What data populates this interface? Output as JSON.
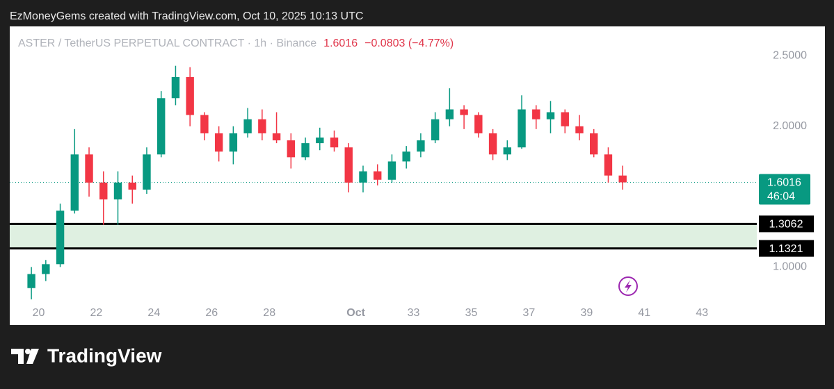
{
  "header": {
    "attribution": "EzMoneyGems created with TradingView.com, Oct 10, 2025 10:13 UTC"
  },
  "footer": {
    "brand": "TradingView"
  },
  "chart_data": {
    "type": "candlestick",
    "title": "ASTER / TetherUS PERPETUAL CONTRACT · 1h · Binance",
    "last_price": 1.6016,
    "change_text": "−0.0803 (−4.77%)",
    "countdown": "46:04",
    "levels": [
      1.3062,
      1.1321
    ],
    "up_color": "#089981",
    "down_color": "#f23645",
    "x": [
      19.75,
      20.25,
      20.75,
      21.25,
      21.75,
      22.25,
      22.75,
      23.25,
      23.75,
      24.25,
      24.75,
      25.25,
      25.75,
      26.25,
      26.75,
      27.25,
      27.75,
      28.25,
      28.75,
      29.25,
      29.75,
      30.25,
      30.75,
      31.25,
      31.75,
      32.25,
      32.75,
      33.25,
      33.75,
      34.25,
      34.75,
      35.25,
      35.75,
      36.25,
      36.75,
      37.25,
      37.75,
      38.25,
      38.75,
      39.25,
      39.75,
      40.25
    ],
    "open": [
      0.85,
      0.95,
      1.02,
      1.4,
      1.8,
      1.6,
      1.48,
      1.6,
      1.55,
      1.8,
      2.2,
      2.35,
      2.08,
      1.95,
      1.82,
      1.95,
      2.05,
      1.95,
      1.9,
      1.78,
      1.88,
      1.92,
      1.85,
      1.6,
      1.68,
      1.62,
      1.75,
      1.82,
      1.9,
      2.05,
      2.12,
      2.08,
      1.95,
      1.8,
      1.85,
      2.12,
      2.05,
      2.1,
      2.0,
      1.95,
      1.8,
      1.65
    ],
    "high": [
      1.0,
      1.05,
      1.45,
      1.98,
      1.85,
      1.68,
      1.68,
      1.65,
      1.85,
      2.25,
      2.43,
      2.42,
      2.1,
      2.0,
      2.0,
      2.13,
      2.12,
      2.1,
      1.95,
      1.92,
      1.99,
      1.97,
      1.88,
      1.72,
      1.73,
      1.8,
      1.86,
      1.95,
      2.1,
      2.27,
      2.15,
      2.1,
      1.98,
      1.9,
      2.22,
      2.15,
      2.18,
      2.12,
      2.08,
      1.98,
      1.85,
      1.72
    ],
    "low": [
      0.77,
      0.9,
      1.0,
      1.38,
      1.5,
      1.3,
      1.3,
      1.45,
      1.52,
      1.78,
      2.15,
      2.0,
      1.9,
      1.75,
      1.73,
      1.92,
      1.9,
      1.88,
      1.7,
      1.76,
      1.83,
      1.82,
      1.53,
      1.53,
      1.58,
      1.6,
      1.7,
      1.78,
      1.88,
      2.0,
      1.98,
      1.92,
      1.76,
      1.76,
      1.84,
      1.98,
      1.95,
      1.95,
      1.9,
      1.78,
      1.6,
      1.55
    ],
    "close": [
      0.95,
      1.02,
      1.4,
      1.8,
      1.6,
      1.48,
      1.6,
      1.55,
      1.8,
      2.2,
      2.35,
      2.08,
      1.95,
      1.82,
      1.95,
      2.05,
      1.95,
      1.9,
      1.78,
      1.88,
      1.92,
      1.85,
      1.6,
      1.68,
      1.62,
      1.75,
      1.82,
      1.9,
      2.05,
      2.12,
      2.08,
      1.95,
      1.8,
      1.85,
      2.12,
      2.05,
      2.1,
      2.0,
      1.95,
      1.8,
      1.65,
      1.6016
    ],
    "xlim": [
      19.0,
      44.9
    ],
    "xticks": [
      20,
      22,
      24,
      26,
      28,
      {
        "value": 31,
        "label": "Oct"
      },
      33,
      35,
      37,
      39,
      41,
      43
    ],
    "ylim": [
      0.75,
      2.7
    ],
    "yticks": [
      {
        "value": 1,
        "label": "1.0000"
      },
      {
        "value": 2,
        "label": "2.0000"
      },
      {
        "value": 2.5,
        "label": "2.5000"
      }
    ]
  }
}
